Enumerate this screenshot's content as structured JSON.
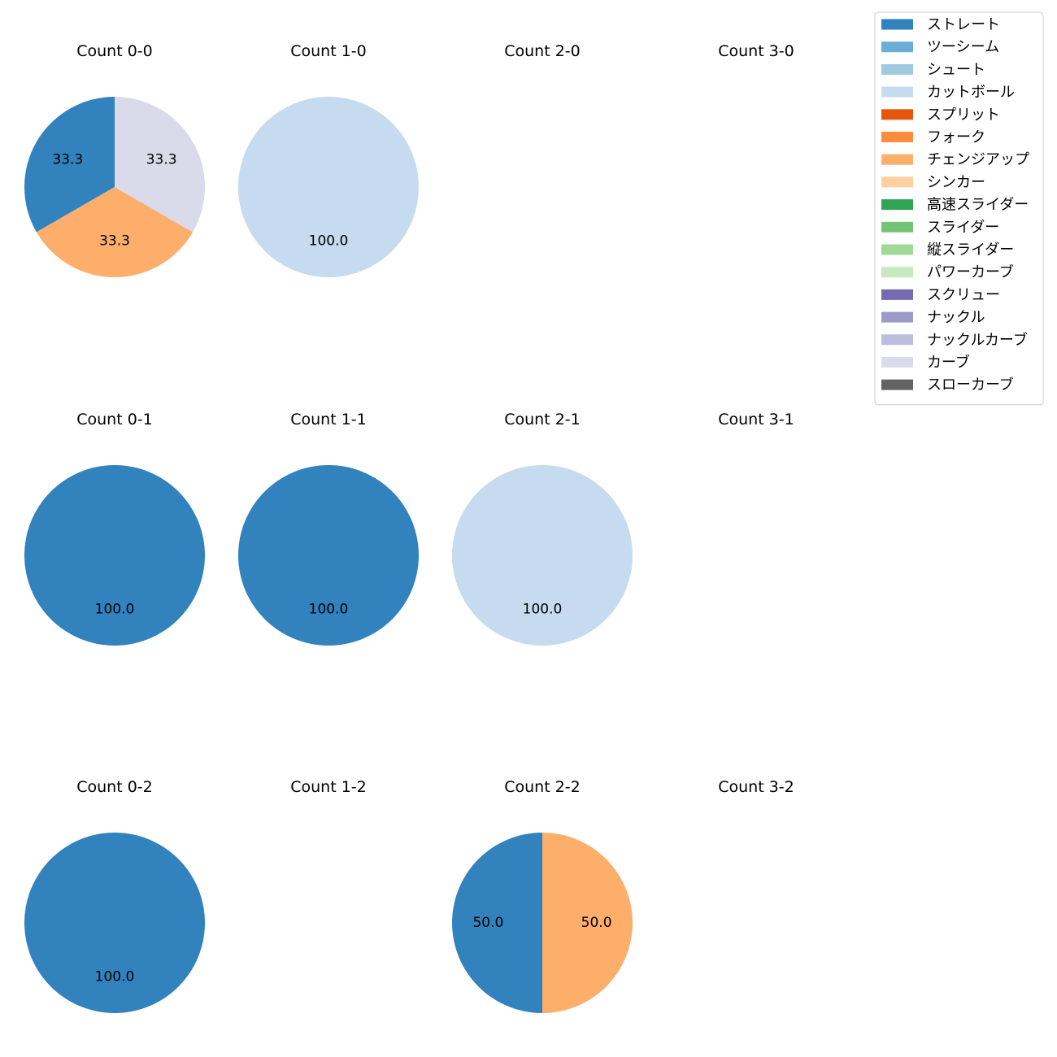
{
  "chart_data": {
    "type": "pie",
    "grid": "4x3",
    "legend_placement": "top-right",
    "categories": [
      {
        "name": "ストレート",
        "color": "#3182bd"
      },
      {
        "name": "ツーシーム",
        "color": "#6baed6"
      },
      {
        "name": "シュート",
        "color": "#9ecae1"
      },
      {
        "name": "カットボール",
        "color": "#c6dbef"
      },
      {
        "name": "スプリット",
        "color": "#e6550d"
      },
      {
        "name": "フォーク",
        "color": "#fd8d3c"
      },
      {
        "name": "チェンジアップ",
        "color": "#fdae6b"
      },
      {
        "name": "シンカー",
        "color": "#fdd0a2"
      },
      {
        "name": "高速スライダー",
        "color": "#31a354"
      },
      {
        "name": "スライダー",
        "color": "#74c476"
      },
      {
        "name": "縦スライダー",
        "color": "#a1d99b"
      },
      {
        "name": "パワーカーブ",
        "color": "#c7e9c0"
      },
      {
        "name": "スクリュー",
        "color": "#756bb1"
      },
      {
        "name": "ナックル",
        "color": "#9e9ac8"
      },
      {
        "name": "ナックルカーブ",
        "color": "#bcbddc"
      },
      {
        "name": "カーブ",
        "color": "#dadaeb"
      },
      {
        "name": "スローカーブ",
        "color": "#636363"
      }
    ],
    "subplots": [
      {
        "title": "Count 0-0",
        "slices": [
          {
            "category": "ストレート",
            "value": 33.3,
            "label": "33.3"
          },
          {
            "category": "チェンジアップ",
            "value": 33.3,
            "label": "33.3"
          },
          {
            "category": "カーブ",
            "value": 33.3,
            "label": "33.3"
          }
        ]
      },
      {
        "title": "Count 1-0",
        "slices": [
          {
            "category": "カットボール",
            "value": 100.0,
            "label": "100.0"
          }
        ]
      },
      {
        "title": "Count 2-0",
        "slices": []
      },
      {
        "title": "Count 3-0",
        "slices": []
      },
      {
        "title": "Count 0-1",
        "slices": [
          {
            "category": "ストレート",
            "value": 100.0,
            "label": "100.0"
          }
        ]
      },
      {
        "title": "Count 1-1",
        "slices": [
          {
            "category": "ストレート",
            "value": 100.0,
            "label": "100.0"
          }
        ]
      },
      {
        "title": "Count 2-1",
        "slices": [
          {
            "category": "カットボール",
            "value": 100.0,
            "label": "100.0"
          }
        ]
      },
      {
        "title": "Count 3-1",
        "slices": []
      },
      {
        "title": "Count 0-2",
        "slices": [
          {
            "category": "ストレート",
            "value": 100.0,
            "label": "100.0"
          }
        ]
      },
      {
        "title": "Count 1-2",
        "slices": []
      },
      {
        "title": "Count 2-2",
        "slices": [
          {
            "category": "ストレート",
            "value": 50.0,
            "label": "50.0"
          },
          {
            "category": "チェンジアップ",
            "value": 50.0,
            "label": "50.0"
          }
        ]
      },
      {
        "title": "Count 3-2",
        "slices": []
      }
    ]
  }
}
